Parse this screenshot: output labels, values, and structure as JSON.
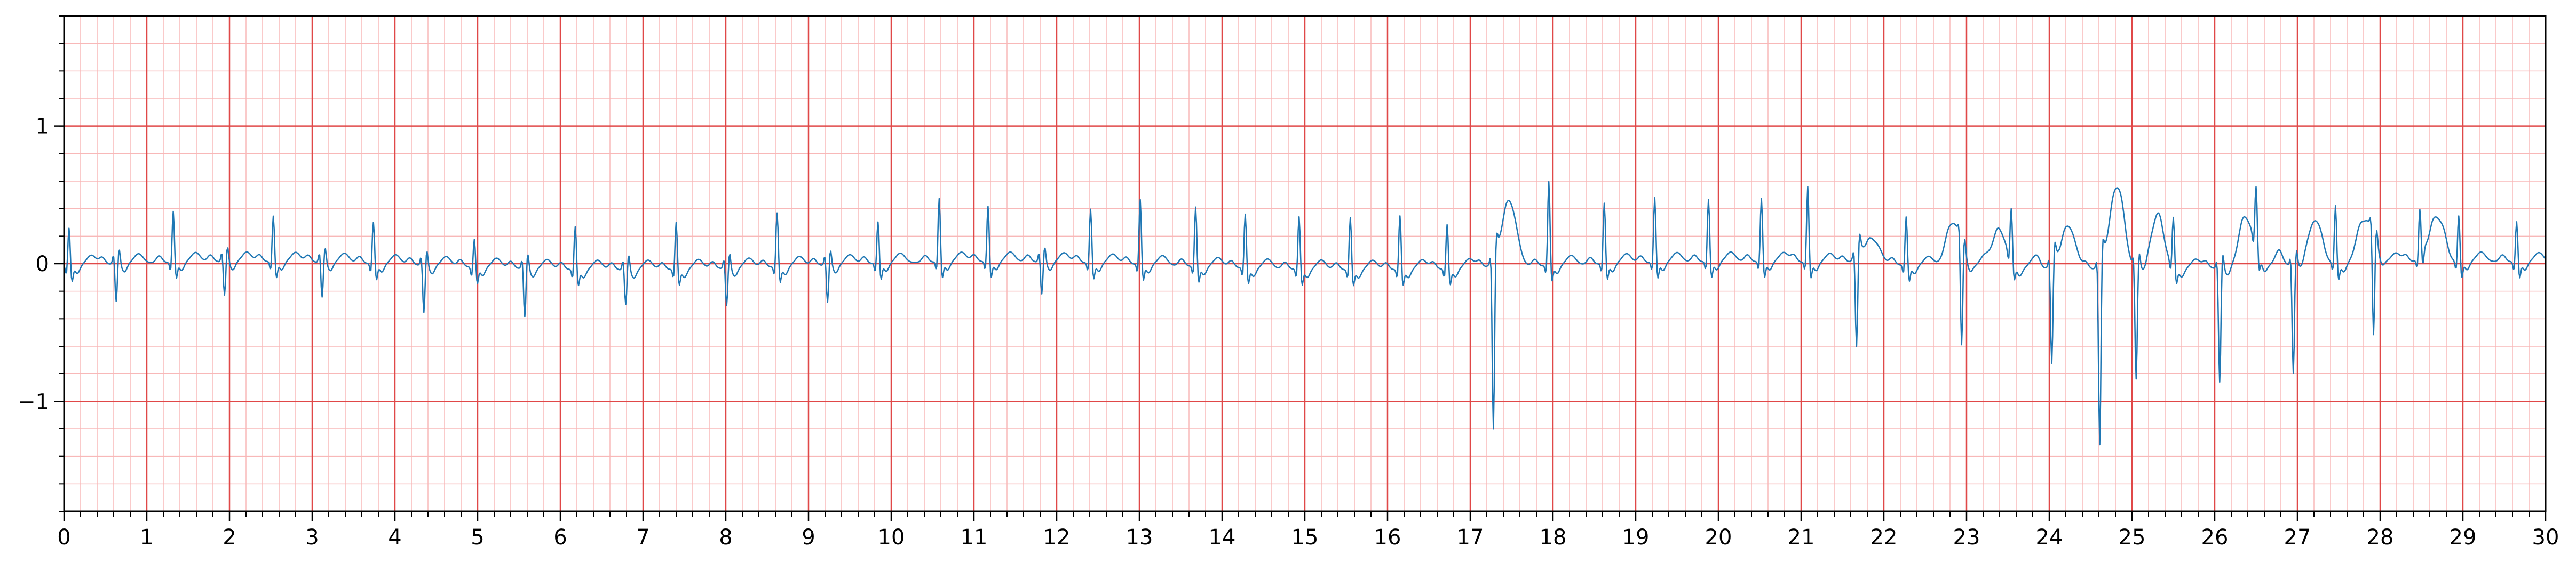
{
  "chart_data": {
    "type": "line",
    "title": "",
    "xlabel": "",
    "ylabel": "",
    "xlim": [
      0,
      30
    ],
    "ylim": [
      -1.8,
      1.8
    ],
    "x_ticks": [
      0,
      1,
      2,
      3,
      4,
      5,
      6,
      7,
      8,
      9,
      10,
      11,
      12,
      13,
      14,
      15,
      16,
      17,
      18,
      19,
      20,
      21,
      22,
      23,
      24,
      25,
      26,
      27,
      28,
      29,
      30
    ],
    "x_tick_labels": [
      "0",
      "1",
      "2",
      "3",
      "4",
      "5",
      "6",
      "7",
      "8",
      "9",
      "10",
      "11",
      "12",
      "13",
      "14",
      "15",
      "16",
      "17",
      "18",
      "19",
      "20",
      "21",
      "22",
      "23",
      "24",
      "25",
      "26",
      "27",
      "28",
      "29",
      "30"
    ],
    "y_ticks": [
      -1,
      0,
      1
    ],
    "y_tick_labels": [
      "−1",
      "0",
      "1"
    ],
    "grid": "on",
    "grid_major": {
      "x_step": 1,
      "y_step": 1,
      "color": "#e04848"
    },
    "grid_minor": {
      "x_step": 0.2,
      "y_step": 0.2,
      "color": "#f8b8b8"
    },
    "line_color": "#1f77b4",
    "series": [
      {
        "name": "",
        "sample_rate_hz": 100,
        "beats_x": [
          0.06,
          0.63,
          1.32,
          1.94,
          2.53,
          3.12,
          3.74,
          4.35,
          4.96,
          5.57,
          6.18,
          6.79,
          7.4,
          8.01,
          8.62,
          9.23,
          9.84,
          10.58,
          11.17,
          11.82,
          12.41,
          13.01,
          13.68,
          14.28,
          14.93,
          15.55,
          16.15,
          16.72,
          17.28,
          17.95,
          18.62,
          19.23,
          19.88,
          20.52,
          21.08,
          21.67,
          22.27,
          22.94,
          23.54,
          24.03,
          24.61,
          25.05,
          25.5,
          26.06,
          26.5,
          26.95,
          27.46,
          27.92,
          28.48,
          28.95,
          29.65
        ],
        "beats_amplitude": [
          0.28,
          -0.28,
          0.38,
          -0.25,
          0.34,
          -0.26,
          0.31,
          -0.35,
          0.21,
          -0.36,
          0.32,
          -0.26,
          0.35,
          -0.28,
          0.4,
          -0.28,
          0.31,
          0.47,
          0.41,
          -0.24,
          0.4,
          0.48,
          0.44,
          0.4,
          0.39,
          0.39,
          0.4,
          0.33,
          -1.26,
          0.62,
          0.45,
          0.48,
          0.46,
          0.47,
          0.56,
          -0.68,
          0.36,
          -0.76,
          0.37,
          -0.74,
          -1.34,
          -0.82,
          0.36,
          -0.84,
          0.43,
          -0.8,
          0.43,
          -0.75,
          0.34,
          0.34,
          0.3
        ],
        "wide_waves_x": [
          17.45,
          21.8,
          22.85,
          23.4,
          24.2,
          24.8,
          25.3,
          26.4,
          27.2,
          27.85,
          28.65
        ],
        "wide_waves_amplitude": [
          0.47,
          0.2,
          0.31,
          0.25,
          0.3,
          0.56,
          0.3,
          0.3,
          0.25,
          0.3,
          0.31
        ]
      }
    ]
  }
}
